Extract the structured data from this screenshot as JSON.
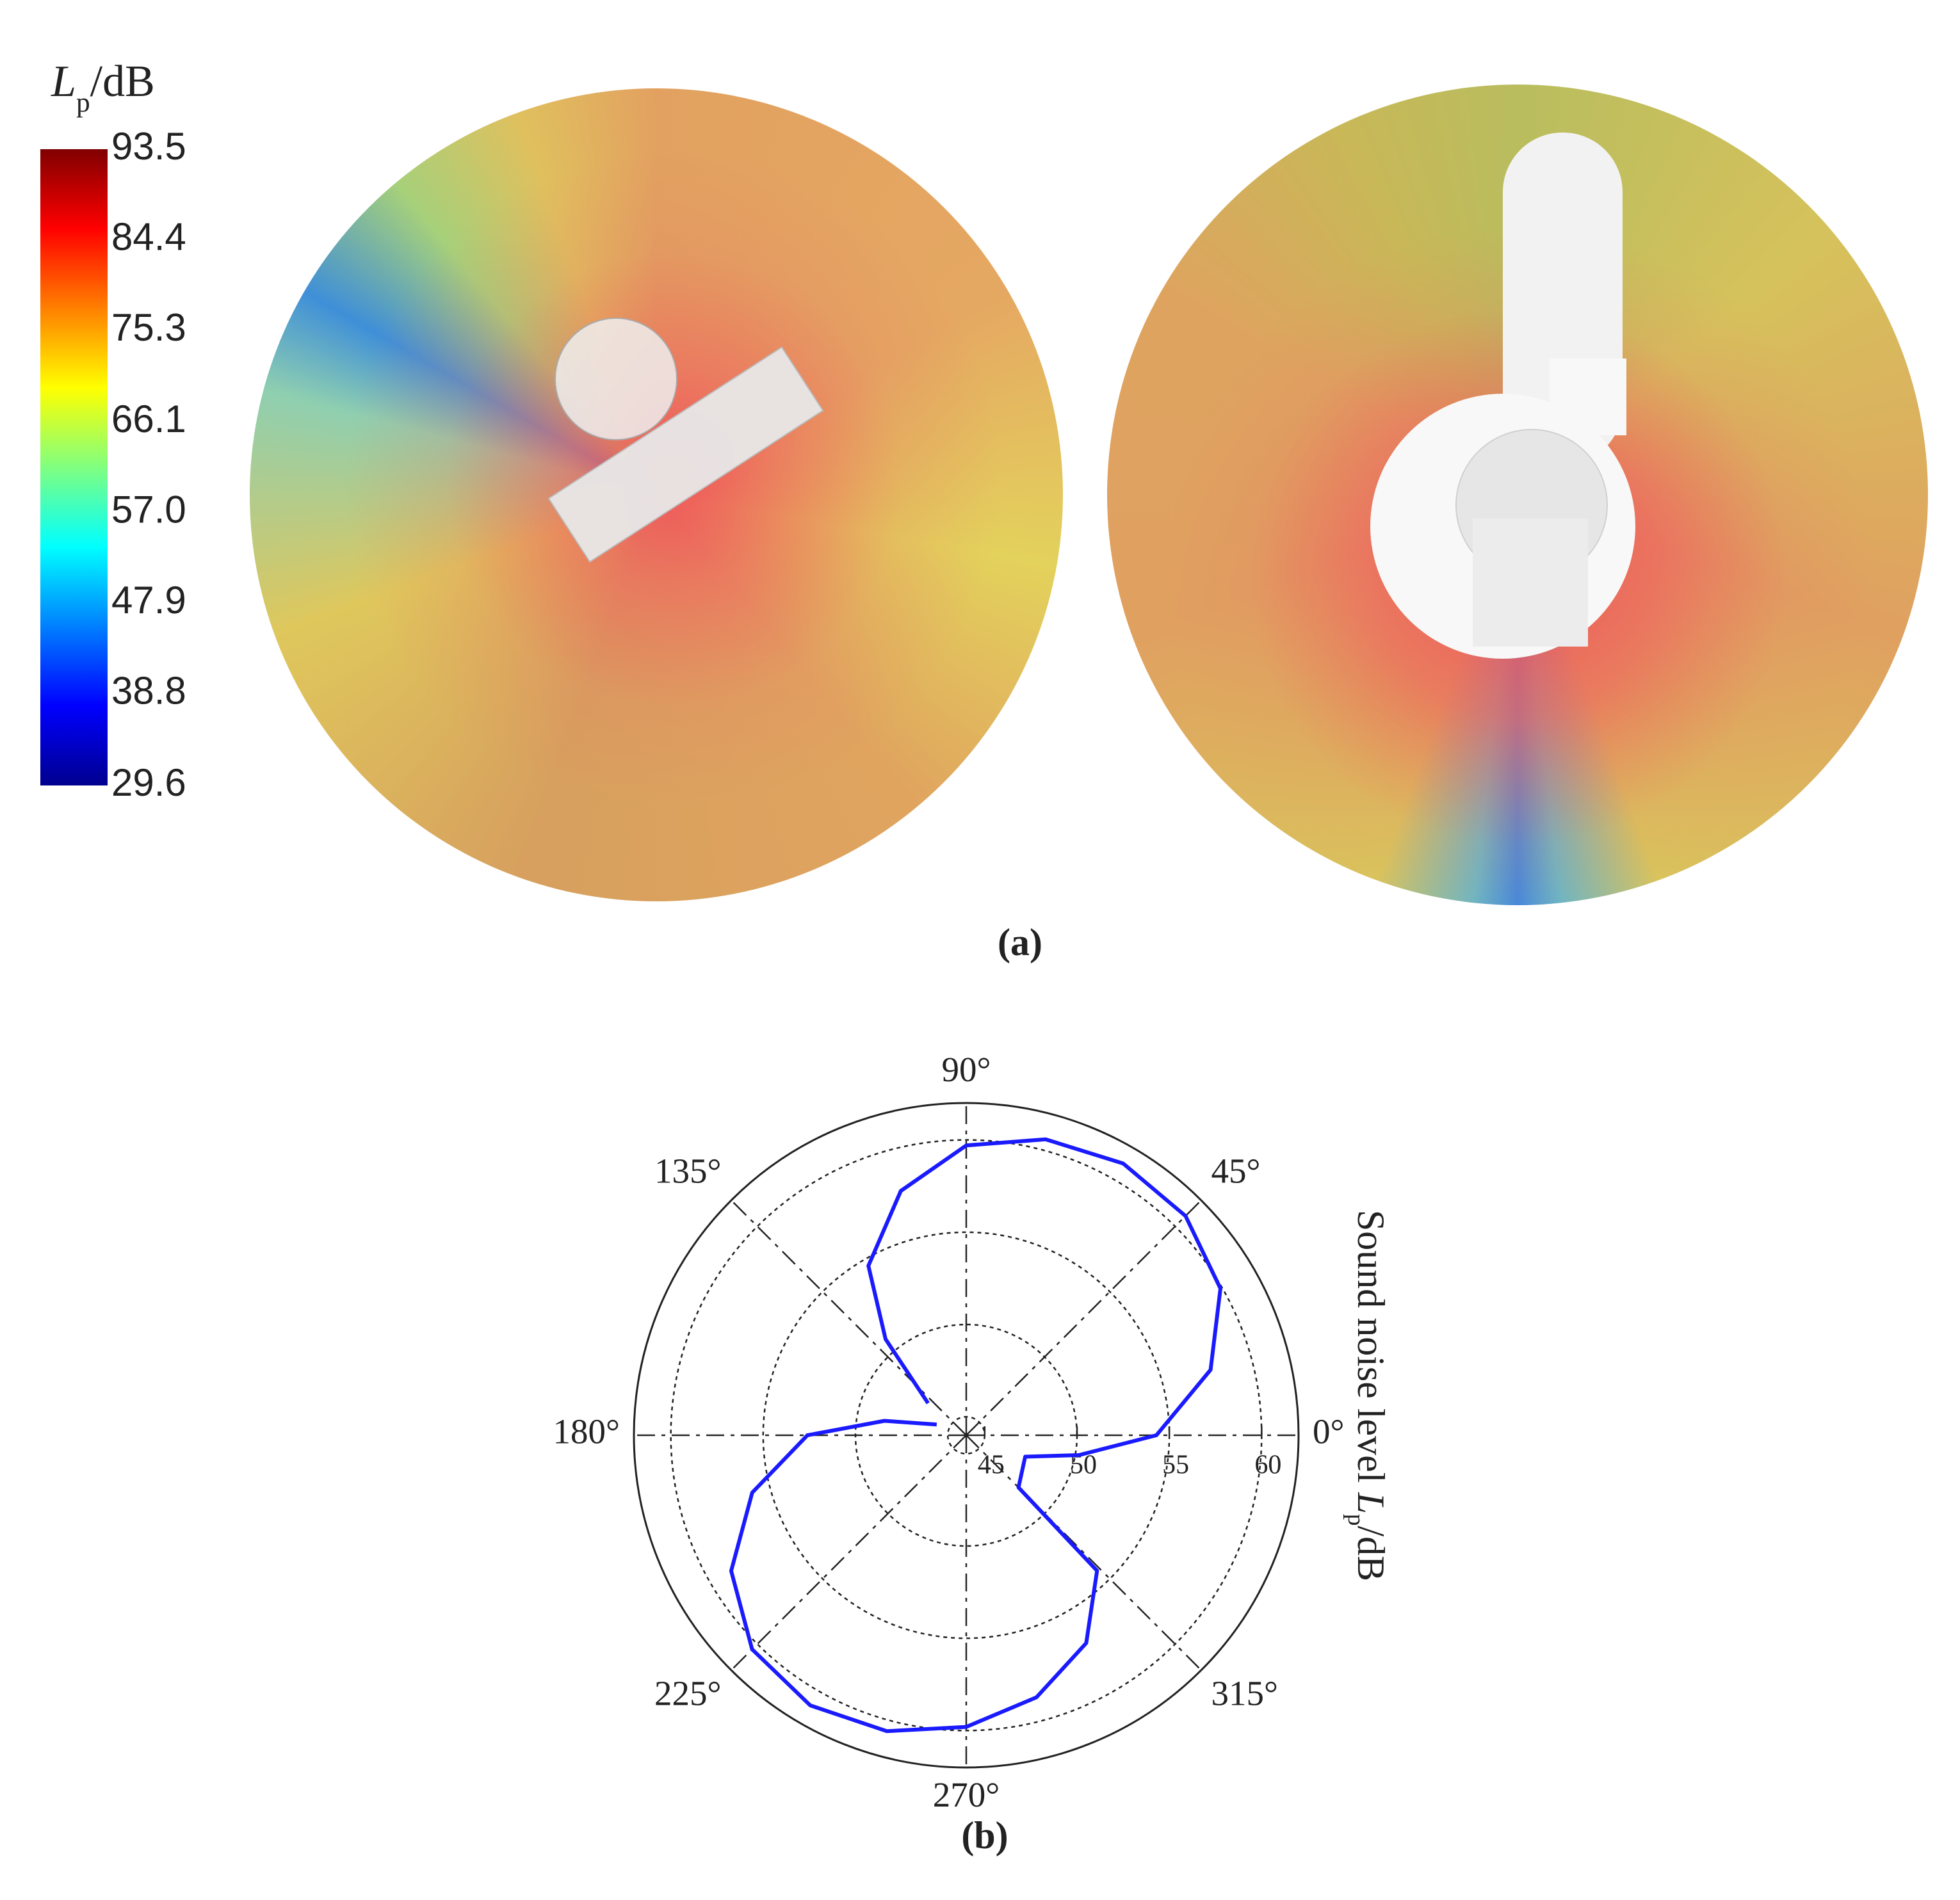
{
  "chart_data": [
    {
      "type": "colorbar",
      "label": "(a)",
      "title": {
        "italic": "L",
        "sub": "p",
        "unit": "/dB"
      },
      "lim": [
        29.6,
        93.5
      ],
      "ticks": [
        93.5,
        84.4,
        75.3,
        66.1,
        {
          "value": 57,
          "label": "57.0"
        },
        47.9,
        38.8,
        29.6
      ]
    },
    {
      "type": "polar-line",
      "label": "(b)",
      "axis_label": {
        "text": "Sound noise level ",
        "italic": "L",
        "sub": "p",
        "unit": "/dB"
      },
      "color": "#1a1aff",
      "theta": [
        140,
        130,
        120,
        105,
        90,
        75,
        60,
        45,
        30,
        15,
        0,
        350,
        340,
        315,
        314,
        300,
        285,
        270,
        255,
        240,
        225,
        210,
        195,
        180,
        170,
        160
      ],
      "values": [
        46.7,
        50.8,
        54.6,
        57.7,
        59.7,
        60.6,
        61.0,
        60.8,
        59.9,
        57.7,
        54.3,
        50.2,
        47.4,
        48.0,
        54.2,
        57.0,
        58.7,
        59.8,
        60.6,
        60.9,
        60.4,
        58.7,
        56.0,
        52.6,
        48.5,
        45.7
      ],
      "rlim": [
        44,
        62
      ],
      "rticks": [
        45,
        50,
        55,
        60
      ],
      "thetaticks": [
        {
          "value": 0,
          "label": "0°"
        },
        {
          "value": 45,
          "label": "45°"
        },
        {
          "value": 90,
          "label": "90°"
        },
        {
          "value": 135,
          "label": "135°"
        },
        {
          "value": 180,
          "label": "180°"
        },
        {
          "value": 225,
          "label": "225°"
        },
        {
          "value": 270,
          "label": "270°"
        },
        {
          "value": 315,
          "label": "315°"
        }
      ]
    }
  ]
}
